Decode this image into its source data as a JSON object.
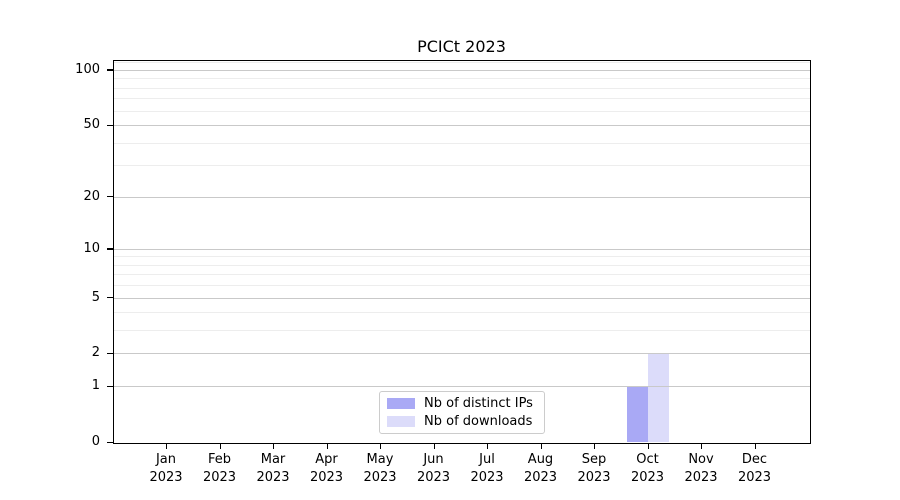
{
  "chart_data": {
    "type": "bar",
    "title": "PCICt 2023",
    "x_axis": {
      "months": [
        "Jan",
        "Feb",
        "Mar",
        "Apr",
        "May",
        "Jun",
        "Jul",
        "Aug",
        "Sep",
        "Oct",
        "Nov",
        "Dec"
      ],
      "year": "2023"
    },
    "series": [
      {
        "name": "Nb of distinct IPs",
        "color": "#a9a9f5",
        "values": [
          0,
          0,
          0,
          0,
          0,
          0,
          0,
          0,
          0,
          1,
          0,
          0
        ]
      },
      {
        "name": "Nb of downloads",
        "color": "#dcdcfa",
        "values": [
          0,
          0,
          0,
          0,
          0,
          0,
          0,
          0,
          0,
          2,
          0,
          0
        ]
      }
    ],
    "y_axis": {
      "scale": "log1p",
      "tick_values": [
        0,
        1,
        2,
        5,
        10,
        20,
        50,
        100
      ],
      "tick_labels": [
        "0",
        "1",
        "2",
        "5",
        "10",
        "20",
        "50",
        "100"
      ],
      "major_gridlines": [
        1,
        2,
        5,
        10,
        20,
        50,
        100
      ],
      "minor_gridlines": [
        3,
        4,
        6,
        7,
        8,
        9,
        30,
        40,
        60,
        70,
        80,
        90,
        110
      ],
      "ylim": [
        0,
        113
      ]
    },
    "legend": {
      "position": "lower center"
    },
    "grid": "on",
    "colors": {
      "axis": "#000000",
      "text": "#000000",
      "major_grid": "#c9c9c9",
      "minor_grid": "#ededed",
      "legend_border": "#cccccc"
    }
  }
}
